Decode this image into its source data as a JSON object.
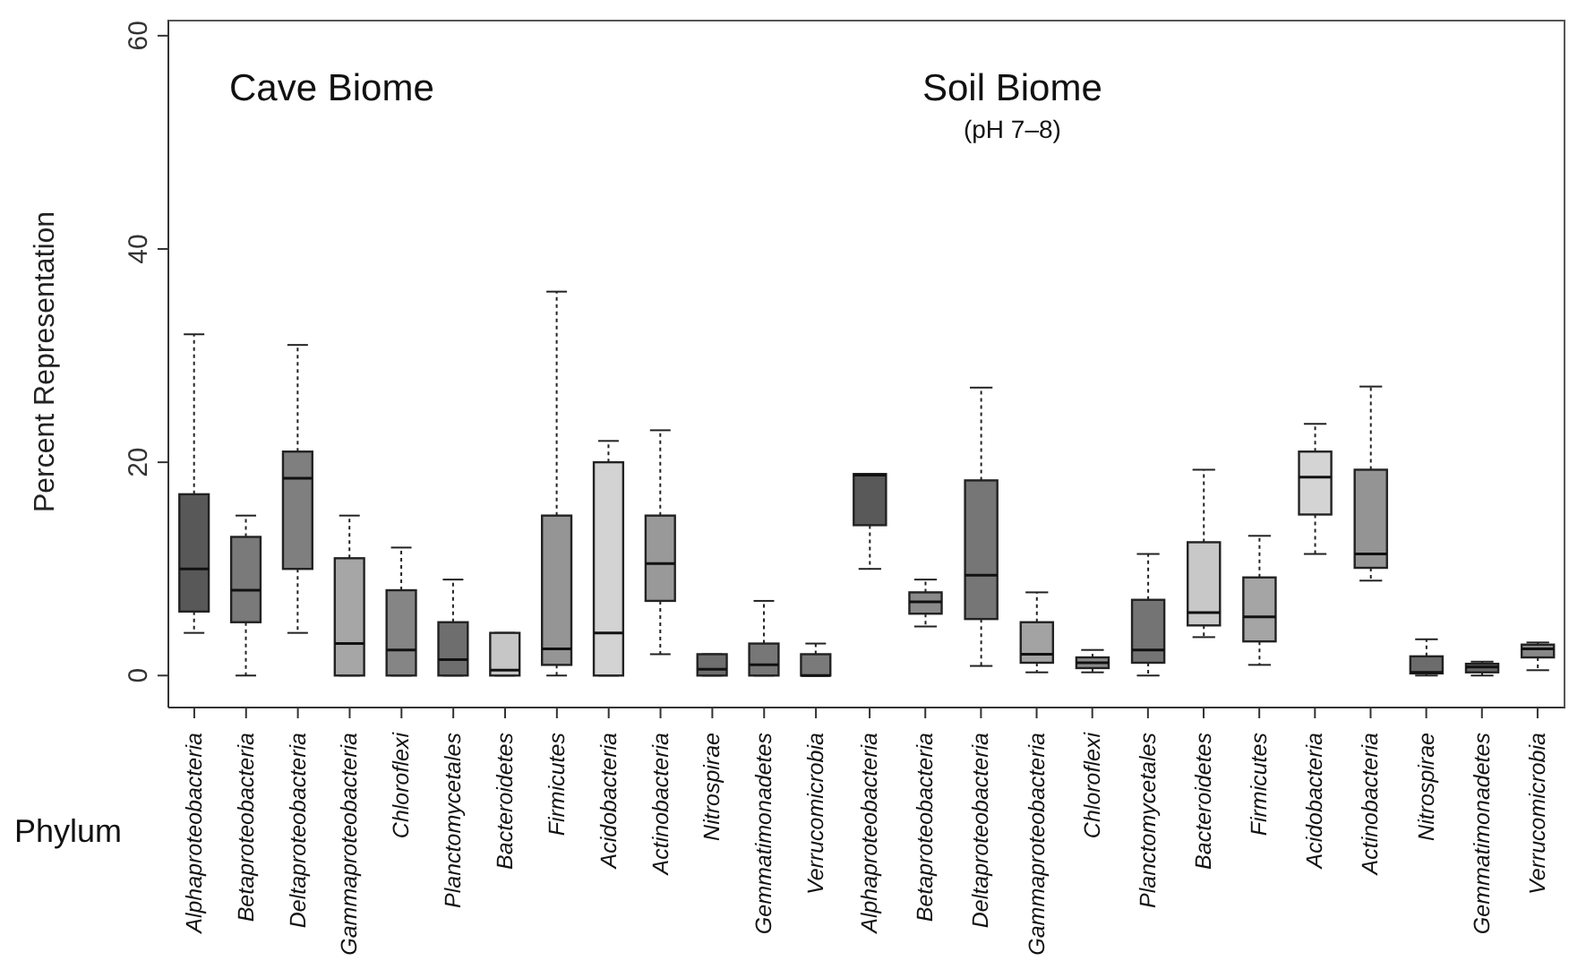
{
  "chart_data": [
    {
      "type": "box",
      "title": "Cave Biome",
      "ylabel": "Percent Representation",
      "xlabel": "Phylum",
      "ylim": [
        -3,
        61.5
      ],
      "yticks": [
        0,
        20,
        40,
        60
      ],
      "categories": [
        "Alphaproteobacteria",
        "Betaproteobacteria",
        "Deltaproteobacteria",
        "Gammaproteobacteria",
        "Chloroflexi",
        "Planctomycetales",
        "Bacteroidetes",
        "Firmicutes",
        "Acidobacteria",
        "Actinobacteria",
        "Nitrospirae",
        "Gemmatimonadetes",
        "Verrucomicrobia"
      ],
      "colors": [
        "#585858",
        "#7a7a7a",
        "#7f7f7f",
        "#a6a6a6",
        "#858585",
        "#6e6e6e",
        "#c6c6c6",
        "#959595",
        "#d3d3d3",
        "#999999",
        "#6e6e6e",
        "#777777",
        "#7a7a7a"
      ],
      "boxes": [
        {
          "low": 4,
          "q1": 6,
          "median": 10,
          "q3": 17,
          "high": 32
        },
        {
          "low": 0,
          "q1": 5,
          "median": 8,
          "q3": 13,
          "high": 15
        },
        {
          "low": 4,
          "q1": 10,
          "median": 18.5,
          "q3": 21,
          "high": 31
        },
        {
          "low": 0,
          "q1": 0,
          "median": 3,
          "q3": 11,
          "high": 15
        },
        {
          "low": 0,
          "q1": 0,
          "median": 2.4,
          "q3": 8,
          "high": 12
        },
        {
          "low": 0,
          "q1": 0,
          "median": 1.5,
          "q3": 5,
          "high": 9
        },
        {
          "low": 0,
          "q1": 0,
          "median": 0.5,
          "q3": 4,
          "high": 4
        },
        {
          "low": 0,
          "q1": 1,
          "median": 2.5,
          "q3": 15,
          "high": 36
        },
        {
          "low": 0,
          "q1": 0,
          "median": 4,
          "q3": 20,
          "high": 22
        },
        {
          "low": 2,
          "q1": 7,
          "median": 10.5,
          "q3": 15,
          "high": 23
        },
        {
          "low": 0,
          "q1": 0,
          "median": 0.6,
          "q3": 2,
          "high": 2
        },
        {
          "low": 0,
          "q1": 0,
          "median": 1,
          "q3": 3,
          "high": 7
        },
        {
          "low": 0,
          "q1": 0,
          "median": 0,
          "q3": 2,
          "high": 3
        }
      ]
    },
    {
      "type": "box",
      "title": "Soil Biome",
      "subtitle": "(pH 7–8)",
      "ylim": [
        -3,
        61.5
      ],
      "tick_labels": "x",
      "categories": [
        "Alphaproteobacteria",
        "Betaproteobacteria",
        "Deltaproteobacteria",
        "Gammaproteobacteria",
        "Chloroflexi",
        "Planctomycetales",
        "Bacteroidetes",
        "Firmicutes",
        "Acidobacteria",
        "Actinobacteria",
        "Nitrospirae",
        "Gemmatimonadetes",
        "Verrucomicrobia"
      ],
      "colors": [
        "#595959",
        "#8a8a8a",
        "#767676",
        "#a3a3a3",
        "#8c8c8c",
        "#747474",
        "#c8c8c8",
        "#a5a5a5",
        "#d4d4d4",
        "#949494",
        "#6c6c6c",
        "#6a6a6a",
        "#888888"
      ],
      "boxes": [
        {
          "low": 10,
          "q1": 14.1,
          "median": 18.8,
          "q3": 18.9,
          "high": 18.9
        },
        {
          "low": 4.6,
          "q1": 5.8,
          "median": 6.9,
          "q3": 7.8,
          "high": 9
        },
        {
          "low": 0.9,
          "q1": 5.3,
          "median": 9.4,
          "q3": 18.3,
          "high": 27
        },
        {
          "low": 0.3,
          "q1": 1.2,
          "median": 2,
          "q3": 5,
          "high": 7.8
        },
        {
          "low": 0.3,
          "q1": 0.7,
          "median": 1.2,
          "q3": 1.7,
          "high": 2.4
        },
        {
          "low": 0,
          "q1": 1.2,
          "median": 2.4,
          "q3": 7.1,
          "high": 11.4
        },
        {
          "low": 3.6,
          "q1": 4.7,
          "median": 5.9,
          "q3": 12.5,
          "high": 19.3
        },
        {
          "low": 1,
          "q1": 3.2,
          "median": 5.5,
          "q3": 9.2,
          "high": 13.1
        },
        {
          "low": 11.4,
          "q1": 15.1,
          "median": 18.6,
          "q3": 21,
          "high": 23.6
        },
        {
          "low": 8.9,
          "q1": 10.1,
          "median": 11.4,
          "q3": 19.3,
          "high": 27.1
        },
        {
          "low": 0,
          "q1": 0.2,
          "median": 0.3,
          "q3": 1.8,
          "high": 3.4
        },
        {
          "low": 0,
          "q1": 0.3,
          "median": 0.8,
          "q3": 1.1,
          "high": 1.3
        },
        {
          "low": 0.5,
          "q1": 1.7,
          "median": 2.5,
          "q3": 2.9,
          "high": 3.1
        }
      ]
    }
  ]
}
